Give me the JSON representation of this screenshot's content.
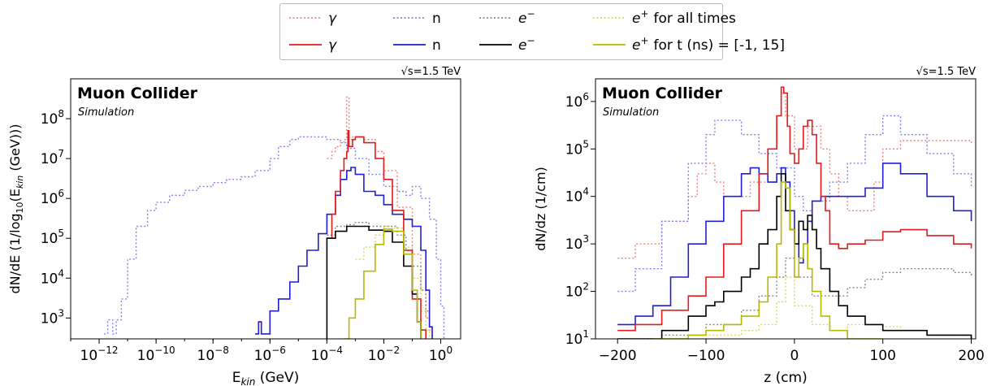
{
  "legend": {
    "row1_suffix": "for all times",
    "row2_suffix": "for t (ns) = [-1, 15]",
    "items": [
      {
        "symbol": "γ",
        "color": "#e41a1c"
      },
      {
        "symbol": "n",
        "color": "#1f1fd6"
      },
      {
        "symbol": "e⁻",
        "color": "#000000"
      },
      {
        "symbol": "e⁺",
        "color": "#b8b800"
      }
    ],
    "colors_dotted": {
      "gamma": "#f08080",
      "n": "#8080f0",
      "e-": "#888888",
      "e+": "#d8d860"
    }
  },
  "chart_data": [
    {
      "type": "line",
      "panel": "left",
      "title": "Muon Collider",
      "subtitle": "Simulation",
      "energy_label": "√s=1.5 TeV",
      "xlabel": "E_kin (GeV)",
      "ylabel": "dN/dE (1/log10(E_kin (GeV)))",
      "x_scale": "log",
      "y_scale": "log",
      "xlim": [
        1e-13,
        5
      ],
      "ylim": [
        300,
        1000000000.0
      ],
      "x_ticks": [
        {
          "v": 1e-12,
          "e": "-12"
        },
        {
          "v": 1e-10,
          "e": "-10"
        },
        {
          "v": 1e-08,
          "e": "-8"
        },
        {
          "v": 1e-06,
          "e": "-6"
        },
        {
          "v": 0.0001,
          "e": "-4"
        },
        {
          "v": 0.01,
          "e": "-2"
        },
        {
          "v": 1,
          "e": "0"
        }
      ],
      "y_ticks": [
        {
          "v": 1000.0,
          "e": "3"
        },
        {
          "v": 10000.0,
          "e": "4"
        },
        {
          "v": 100000.0,
          "e": "5"
        },
        {
          "v": 1000000.0,
          "e": "6"
        },
        {
          "v": 10000000.0,
          "e": "7"
        },
        {
          "v": 100000000.0,
          "e": "8"
        }
      ],
      "series": [
        {
          "key": "n_all",
          "style": "dotted",
          "color": "#8080f0",
          "x": [
            1.5e-12,
            2e-12,
            3e-12,
            4e-12,
            6e-12,
            1e-11,
            2e-11,
            5e-11,
            1e-10,
            3e-10,
            1e-09,
            3e-09,
            1e-08,
            3e-08,
            1e-07,
            3e-07,
            1e-06,
            2e-06,
            5e-06,
            1e-05,
            3e-05,
            0.0001,
            0.0003,
            0.0005,
            0.001,
            0.003,
            0.01,
            0.03,
            0.06,
            0.1,
            0.2,
            0.4,
            0.7,
            1,
            1.3
          ],
          "y": [
            400,
            900,
            400,
            900,
            3000.0,
            30000.0,
            200000.0,
            500000.0,
            800000.0,
            1200000.0,
            1600000.0,
            2000000.0,
            2500000.0,
            3000000.0,
            3500000.0,
            5000000.0,
            10000000.0,
            20000000.0,
            30000000.0,
            35000000.0,
            35000000.0,
            30000000.0,
            25000000.0,
            18000000.0,
            10000000.0,
            4000000.0,
            2000000.0,
            1500000.0,
            1200000.0,
            2000000.0,
            1000000.0,
            300000.0,
            30000.0,
            2000.0,
            300
          ]
        },
        {
          "key": "gamma_all",
          "style": "dotted",
          "color": "#f08080",
          "x": [
            0.0001,
            0.00015,
            0.0002,
            0.0003,
            0.0004,
            0.0005,
            0.0006,
            0.0008,
            0.001,
            0.002,
            0.005,
            0.01,
            0.03,
            0.1,
            0.2,
            0.3,
            0.4,
            0.5
          ],
          "y": [
            10000000.0,
            15000000.0,
            20000000.0,
            25000000.0,
            30000000.0,
            350000000.0,
            30000000.0,
            35000000.0,
            35000000.0,
            30000000.0,
            15000000.0,
            5000000.0,
            600000.0,
            40000.0,
            5000.0,
            1000.0,
            500,
            300
          ]
        },
        {
          "key": "e-_all",
          "style": "dotted",
          "color": "#888888",
          "x": [
            0.0001,
            0.0002,
            0.0005,
            0.001,
            0.003,
            0.01,
            0.03,
            0.06,
            0.1,
            0.2,
            0.3,
            0.4,
            0.5
          ],
          "y": [
            120000.0,
            200000.0,
            220000.0,
            250000.0,
            200000.0,
            200000.0,
            120000.0,
            50000.0,
            20000.0,
            5000.0,
            1500.0,
            600,
            300
          ]
        },
        {
          "key": "e+_all",
          "style": "dotted",
          "color": "#d8d860",
          "x": [
            0.001,
            0.002,
            0.005,
            0.01,
            0.02,
            0.05,
            0.1,
            0.2,
            0.3,
            0.4
          ],
          "y": [
            30000.0,
            60000.0,
            120000.0,
            200000.0,
            180000.0,
            60000.0,
            10000.0,
            1500.0,
            500,
            300
          ]
        },
        {
          "key": "n_t",
          "style": "solid",
          "color": "#1f1fd6",
          "x": [
            3e-07,
            4e-07,
            5e-07,
            1e-06,
            2e-06,
            5e-06,
            1e-05,
            2e-05,
            5e-05,
            0.0001,
            0.0002,
            0.0003,
            0.0005,
            0.0007,
            0.001,
            0.002,
            0.005,
            0.01,
            0.02,
            0.05,
            0.1,
            0.2,
            0.3,
            0.4,
            0.5
          ],
          "y": [
            400,
            800,
            400,
            1500,
            3000.0,
            8000.0,
            20000.0,
            50000.0,
            130000.0,
            400000.0,
            1200000.0,
            3000000.0,
            5000000.0,
            6000000.0,
            4000000.0,
            1500000.0,
            1200000.0,
            700000.0,
            400000.0,
            300000.0,
            200000.0,
            50000.0,
            5000.0,
            600,
            300
          ]
        },
        {
          "key": "gamma_t",
          "style": "solid",
          "color": "#e41a1c",
          "x": [
            0.0001,
            0.00015,
            0.0002,
            0.0003,
            0.0004,
            0.0005,
            0.00055,
            0.0006,
            0.0008,
            0.001,
            0.002,
            0.005,
            0.01,
            0.02,
            0.05,
            0.1,
            0.2,
            0.3
          ],
          "y": [
            100000.0,
            400000.0,
            1500000.0,
            5000000.0,
            10000000.0,
            15000000.0,
            50000000.0,
            20000000.0,
            30000000.0,
            35000000.0,
            25000000.0,
            10000000.0,
            3000000.0,
            500000.0,
            50000.0,
            3000.0,
            500,
            300
          ]
        },
        {
          "key": "e-_t",
          "style": "solid",
          "color": "#000000",
          "x": [
            0.0001,
            0.0001,
            0.0002,
            0.0005,
            0.001,
            0.003,
            0.01,
            0.02,
            0.05,
            0.1,
            0.15,
            0.2
          ],
          "y": [
            300,
            100000.0,
            150000.0,
            200000.0,
            200000.0,
            160000.0,
            150000.0,
            80000.0,
            20000.0,
            4000.0,
            800,
            300
          ]
        },
        {
          "key": "e+_t",
          "style": "solid",
          "color": "#b8b800",
          "x": [
            0.0004,
            0.0006,
            0.001,
            0.002,
            0.005,
            0.01,
            0.02,
            0.05,
            0.1,
            0.15,
            0.2
          ],
          "y": [
            300,
            1000.0,
            3000.0,
            15000.0,
            70000.0,
            170000.0,
            150000.0,
            40000.0,
            5000.0,
            800,
            300
          ]
        }
      ]
    },
    {
      "type": "line",
      "panel": "right",
      "title": "Muon Collider",
      "subtitle": "Simulation",
      "energy_label": "√s=1.5 TeV",
      "xlabel": "z (cm)",
      "ylabel": "dN/dz (1/cm)",
      "x_scale": "linear",
      "y_scale": "log",
      "xlim": [
        -225,
        205
      ],
      "ylim": [
        10,
        3000000.0
      ],
      "x_ticks": [
        {
          "v": -200,
          "t": "−200"
        },
        {
          "v": -100,
          "t": "−100"
        },
        {
          "v": 0,
          "t": "0"
        },
        {
          "v": 100,
          "t": "100"
        },
        {
          "v": 200,
          "t": "200"
        }
      ],
      "y_ticks": [
        {
          "v": 10.0,
          "e": "1"
        },
        {
          "v": 100.0,
          "e": "2"
        },
        {
          "v": 1000.0,
          "e": "3"
        },
        {
          "v": 10000.0,
          "e": "4"
        },
        {
          "v": 100000.0,
          "e": "5"
        },
        {
          "v": 1000000.0,
          "e": "6"
        }
      ],
      "series": [
        {
          "key": "gamma_all",
          "style": "dotted",
          "color": "#f08080",
          "x": [
            -200,
            -180,
            -150,
            -120,
            -110,
            -100,
            -90,
            -80,
            -50,
            -30,
            -20,
            -15,
            -10,
            0,
            15,
            30,
            40,
            50,
            60,
            80,
            90,
            100,
            120,
            150,
            180,
            200
          ],
          "y": [
            500,
            1000.0,
            3000.0,
            10000.0,
            30000.0,
            50000.0,
            20000.0,
            10000.0,
            20000.0,
            100000.0,
            500000.0,
            1500000.0,
            500000.0,
            100000.0,
            300000.0,
            100000.0,
            30000.0,
            10000.0,
            5000.0,
            5000.0,
            20000.0,
            100000.0,
            150000.0,
            150000.0,
            150000.0,
            130000.0
          ]
        },
        {
          "key": "n_all",
          "style": "dotted",
          "color": "#8080f0",
          "x": [
            -200,
            -180,
            -150,
            -120,
            -100,
            -90,
            -80,
            -60,
            -40,
            -20,
            0,
            10,
            20,
            40,
            60,
            80,
            100,
            120,
            150,
            180,
            200
          ],
          "y": [
            100.0,
            300.0,
            3000.0,
            50000.0,
            200000.0,
            400000.0,
            400000.0,
            200000.0,
            80000.0,
            40000.0,
            10000.0,
            5000.0,
            8000.0,
            20000.0,
            50000.0,
            200000.0,
            500000.0,
            200000.0,
            80000.0,
            30000.0,
            15000.0
          ]
        },
        {
          "key": "e-_all",
          "style": "dotted",
          "color": "#888888",
          "x": [
            -200,
            -150,
            -100,
            -60,
            -40,
            -20,
            -10,
            0,
            20,
            40,
            60,
            80,
            100,
            120,
            150,
            180,
            200
          ],
          "y": [
            10,
            12,
            20,
            40,
            80,
            200,
            500,
            200,
            80,
            80,
            120,
            180,
            250,
            300,
            300,
            250,
            200
          ]
        },
        {
          "key": "e+_all",
          "style": "dotted",
          "color": "#d8d860",
          "x": [
            -200,
            -150,
            -100,
            -60,
            -40,
            -20,
            -10,
            0,
            20,
            40,
            60,
            80,
            100,
            120,
            150,
            200
          ],
          "y": [
            10,
            10,
            12,
            15,
            20,
            60,
            200,
            50,
            20,
            15,
            20,
            20,
            18,
            15,
            12,
            10
          ]
        },
        {
          "key": "n_t",
          "style": "solid",
          "color": "#1f1fd6",
          "x": [
            -200,
            -180,
            -160,
            -140,
            -120,
            -100,
            -80,
            -60,
            -50,
            -40,
            -30,
            -20,
            -15,
            -10,
            -5,
            0,
            5,
            10,
            15,
            20,
            30,
            40,
            60,
            80,
            100,
            120,
            150,
            180,
            200
          ],
          "y": [
            20,
            30,
            50,
            200,
            1000.0,
            3000.0,
            10000.0,
            30000.0,
            40000.0,
            30000.0,
            20000.0,
            30000.0,
            40000.0,
            20000.0,
            5000.0,
            1000.0,
            400,
            1000.0,
            3000.0,
            8000.0,
            10000.0,
            10000.0,
            10000.0,
            15000.0,
            50000.0,
            30000.0,
            10000.0,
            5000.0,
            3000.0
          ]
        },
        {
          "key": "gamma_t",
          "style": "solid",
          "color": "#e41a1c",
          "x": [
            -200,
            -180,
            -150,
            -120,
            -100,
            -80,
            -60,
            -40,
            -30,
            -20,
            -15,
            -12,
            -8,
            -5,
            0,
            5,
            10,
            15,
            20,
            25,
            30,
            35,
            40,
            50,
            60,
            80,
            100,
            120,
            150,
            180,
            200
          ],
          "y": [
            15,
            20,
            40,
            80,
            200,
            1000.0,
            5000.0,
            30000.0,
            100000.0,
            500000.0,
            2000000.0,
            1500000.0,
            300000.0,
            80000.0,
            50000.0,
            100000.0,
            300000.0,
            400000.0,
            200000.0,
            50000.0,
            10000.0,
            5000.0,
            1000.0,
            800,
            1000.0,
            1200.0,
            1800.0,
            2000.0,
            1500.0,
            1000.0,
            800
          ]
        },
        {
          "key": "e-_t",
          "style": "solid",
          "color": "#000000",
          "x": [
            -200,
            -150,
            -120,
            -100,
            -90,
            -80,
            -60,
            -50,
            -40,
            -30,
            -20,
            -15,
            -10,
            -5,
            0,
            5,
            10,
            15,
            20,
            25,
            30,
            40,
            50,
            60,
            80,
            100,
            120,
            150,
            180,
            200
          ],
          "y": [
            10,
            15,
            30,
            50,
            60,
            100,
            200,
            300,
            1000.0,
            2000.0,
            10000.0,
            30000.0,
            5000.0,
            2000.0,
            1000.0,
            3000.0,
            2000.0,
            4000.0,
            2000.0,
            800,
            300,
            100,
            50,
            30,
            20,
            15,
            15,
            12,
            12,
            10
          ]
        },
        {
          "key": "e+_t",
          "style": "solid",
          "color": "#b8b800",
          "x": [
            -160,
            -120,
            -100,
            -80,
            -60,
            -40,
            -30,
            -20,
            -15,
            -10,
            -5,
            0,
            5,
            10,
            15,
            20,
            30,
            40,
            60,
            100
          ],
          "y": [
            10,
            12,
            15,
            20,
            30,
            60,
            200,
            1000.0,
            20000.0,
            15000.0,
            2000.0,
            200,
            500,
            1000.0,
            300,
            100,
            30,
            15,
            10,
            10
          ]
        }
      ]
    }
  ]
}
